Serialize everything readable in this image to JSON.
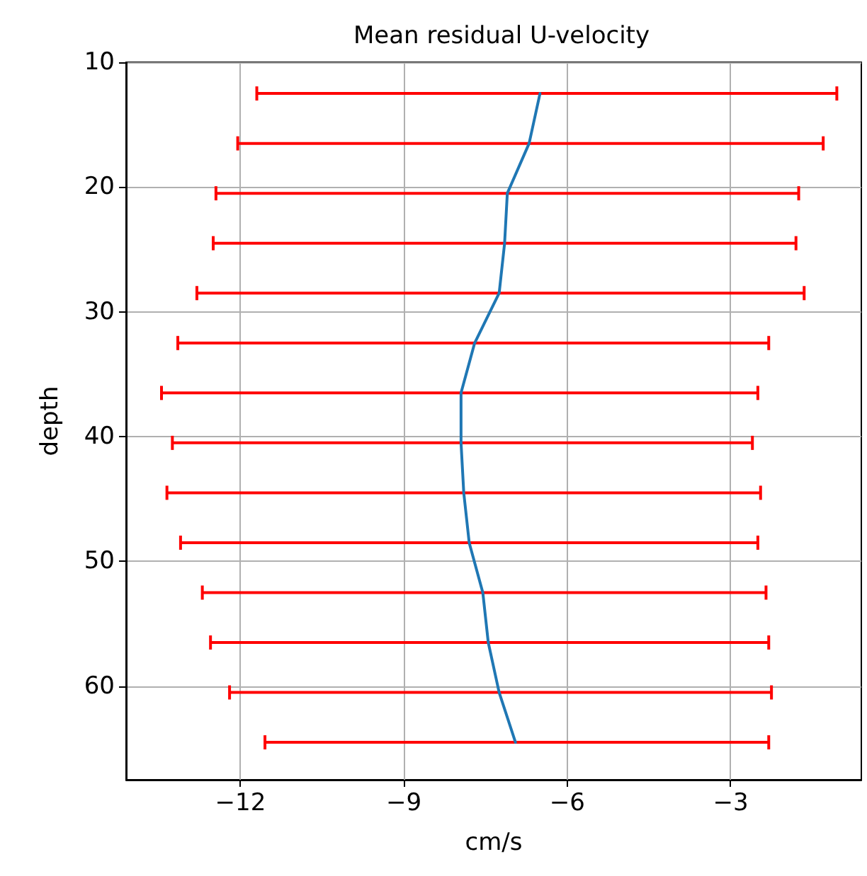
{
  "chart_data": {
    "type": "line",
    "title": "Mean residual U-velocity",
    "xlabel": "cm/s",
    "ylabel": "depth",
    "xlim": [
      -14.1,
      -0.6
    ],
    "xticks": [
      {
        "value": -12,
        "label": "−12"
      },
      {
        "value": -9,
        "label": "−9"
      },
      {
        "value": -6,
        "label": "−6"
      },
      {
        "value": -3,
        "label": "−3"
      }
    ],
    "ylim": [
      67.5,
      10
    ],
    "yticks": [
      10,
      20,
      30,
      40,
      50,
      60
    ],
    "grid": true,
    "marker": "none",
    "series": [
      {
        "color": "#1f77b4",
        "x": [
          -6.5,
          -6.7,
          -7.1,
          -7.15,
          -7.25,
          -7.7,
          -7.95,
          -7.95,
          -7.9,
          -7.8,
          -7.55,
          -7.45,
          -7.25,
          -6.95
        ],
        "values": [
          12.5,
          16.5,
          20.5,
          24.5,
          28.5,
          32.5,
          36.5,
          40.5,
          44.5,
          48.5,
          52.5,
          56.5,
          60.5,
          64.5
        ],
        "xerrors": [
          [
            -11.7,
            -1.05
          ],
          [
            -12.05,
            -1.3
          ],
          [
            -12.45,
            -1.75
          ],
          [
            -12.5,
            -1.8
          ],
          [
            -12.8,
            -1.65
          ],
          [
            -13.15,
            -2.3
          ],
          [
            -13.45,
            -2.5
          ],
          [
            -13.25,
            -2.6
          ],
          [
            -13.35,
            -2.45
          ],
          [
            -13.1,
            -2.5
          ],
          [
            -12.7,
            -2.35
          ],
          [
            -12.55,
            -2.3
          ],
          [
            -12.2,
            -2.25
          ],
          [
            -11.55,
            -2.3
          ]
        ]
      }
    ]
  }
}
